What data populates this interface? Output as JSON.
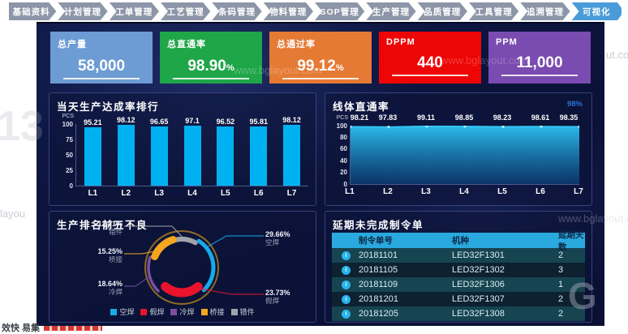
{
  "nav": {
    "tabs": [
      "基础资料",
      "计划管理",
      "工单管理",
      "工艺管理",
      "条码管理",
      "物料管理",
      "SOP管理",
      "生产管理",
      "品质管理",
      "工具管理",
      "追溯管理",
      "可视化"
    ],
    "active_tab": "可视化"
  },
  "kpi_cards": [
    {
      "label": "总产量",
      "value": "58,000",
      "suffix": "",
      "color": "#6d9bd3"
    },
    {
      "label": "总直通率",
      "value": "98.90",
      "suffix": "%",
      "color": "#1fa648"
    },
    {
      "label": "总通过率",
      "value": "99.12",
      "suffix": "%",
      "color": "#e57a35"
    },
    {
      "label": "DPPM",
      "value": "440",
      "suffix": "",
      "color": "#ee0505"
    },
    {
      "label": "PPM",
      "value": "11,000",
      "suffix": "",
      "color": "#7a4bb0"
    }
  ],
  "chart_data": [
    {
      "id": "daily_achievement_rank",
      "type": "bar",
      "title": "当天生产达成率排行",
      "unit": "PCS",
      "categories": [
        "L1",
        "L2",
        "L3",
        "L4",
        "L5",
        "L6",
        "L7"
      ],
      "values": [
        95.21,
        98.12,
        96.65,
        97.1,
        96.52,
        95.81,
        98.12
      ],
      "yticks": [
        0,
        25,
        50,
        75,
        100
      ],
      "ylim": [
        0,
        100
      ],
      "bar_color": "#00b1f1",
      "legend_position": "none",
      "grid": false
    },
    {
      "id": "line_first_pass_yield",
      "type": "area",
      "title": "线体直通率",
      "unit": "PCS",
      "corner_label": "98%",
      "categories": [
        "L1",
        "L2",
        "L3",
        "L4",
        "L5",
        "L6",
        "L7"
      ],
      "values": [
        98.21,
        97.83,
        99.11,
        98.85,
        98.23,
        98.61,
        98.35
      ],
      "yticks": [
        0,
        20,
        40,
        60,
        80,
        100
      ],
      "ylim": [
        0,
        100
      ],
      "line_color": "#35cdf8",
      "fill_top": "#2cc3f5",
      "fill_bottom": "#0b3f77",
      "grid": true
    },
    {
      "id": "top5_defects",
      "type": "pie",
      "title": "生产排名前五不良",
      "slices": [
        {
          "label": "空焊",
          "value": 29.66,
          "pct_text": "29.66%",
          "color": "#18aae8",
          "side": "right"
        },
        {
          "label": "假焊",
          "value": 23.73,
          "pct_text": "23.73%",
          "color": "#e9132e",
          "side": "right"
        },
        {
          "label": "冷焊",
          "value": 18.64,
          "pct_text": "18.64%",
          "color": "#7b4f9e",
          "side": "left"
        },
        {
          "label": "桥接",
          "value": 15.25,
          "pct_text": "15.25%",
          "color": "#f6a51f",
          "side": "left"
        },
        {
          "label": "错件",
          "value": 12.71,
          "pct_text": "12.71%",
          "color": "#9fa4ab",
          "side": "left"
        }
      ],
      "legend": [
        "空焊",
        "假焊",
        "冷焊",
        "桥接",
        "错件"
      ],
      "legend_position": "bottom",
      "ring_color": "#8f6b25"
    }
  ],
  "table": {
    "title": "延期未完成制令单",
    "columns": [
      "制令单号",
      "机种",
      "延期天数"
    ],
    "rows": [
      [
        "20181101",
        "LED32F1301",
        "2"
      ],
      [
        "20181105",
        "LED32F1302",
        "3"
      ],
      [
        "20181109",
        "LED32F1306",
        "1"
      ],
      [
        "20181201",
        "LED32F1307",
        "2"
      ],
      [
        "20181205",
        "LED32F1308",
        "2"
      ]
    ]
  },
  "watermarks": {
    "site": "www.bglayout.com",
    "fragment_left": "layou",
    "fragment_right": "ut.cor",
    "big_left": "13",
    "big_right": "G",
    "footer": "效快 易集"
  }
}
